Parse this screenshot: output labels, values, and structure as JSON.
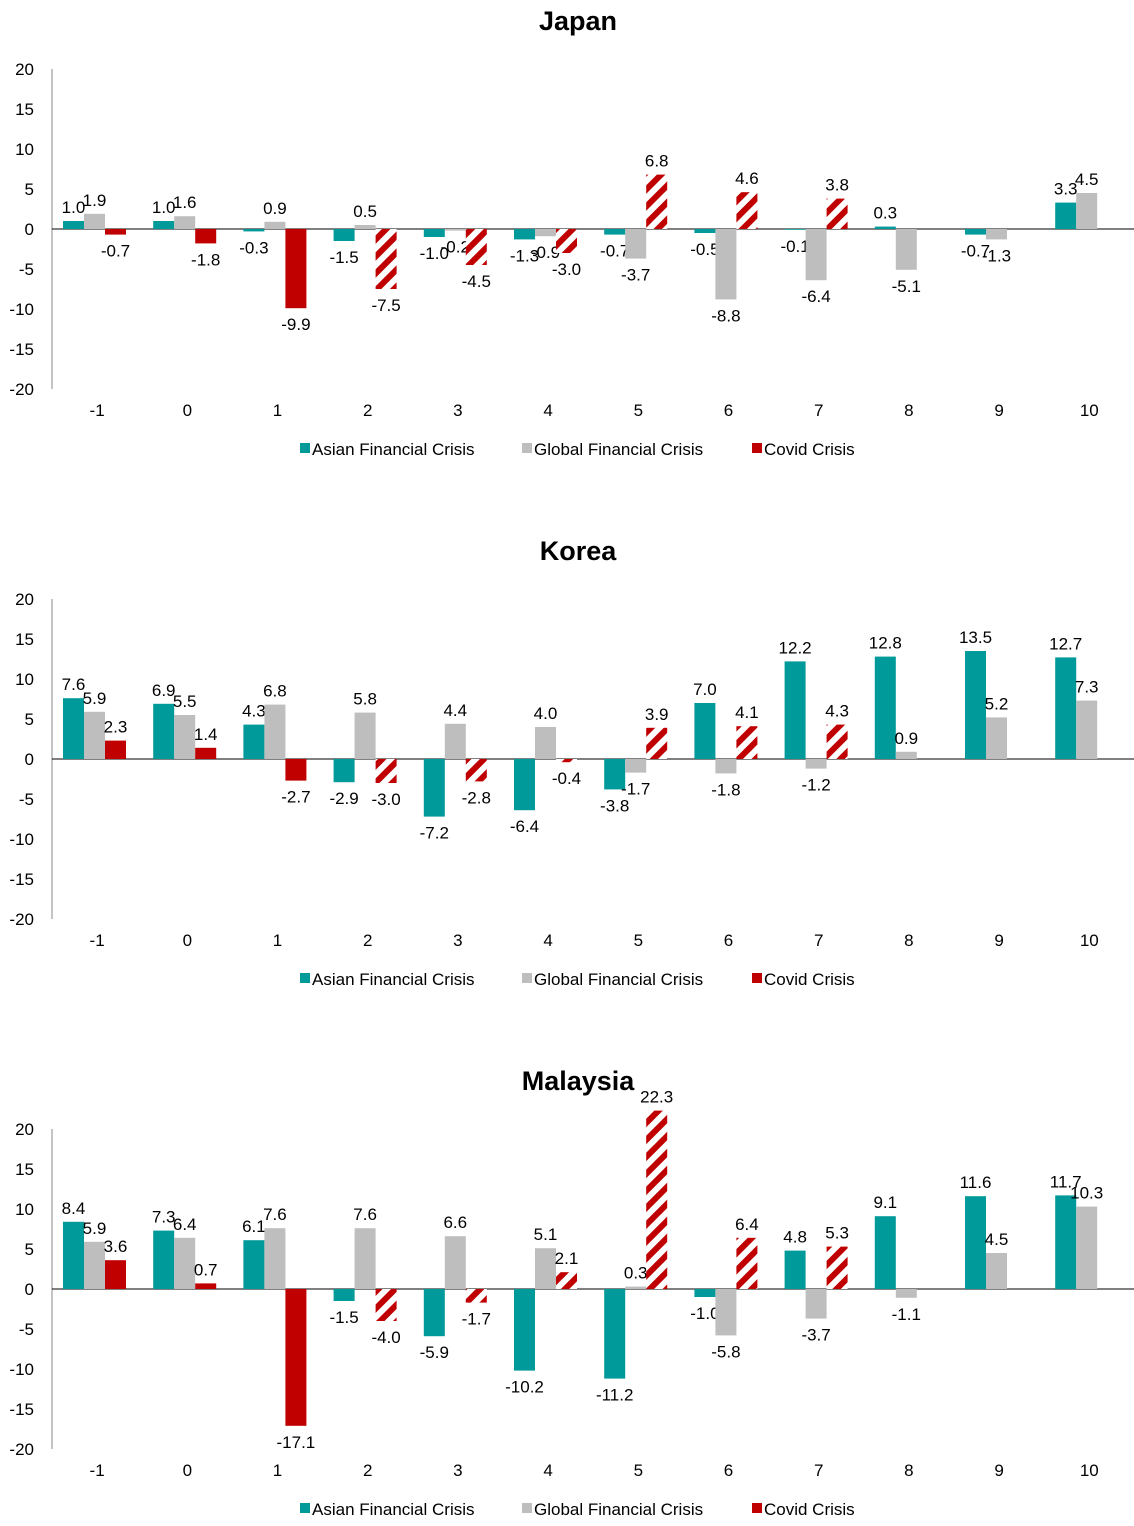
{
  "colors": {
    "asian": "#009A9A",
    "global": "#BEBEBE",
    "covid": "#C00000",
    "covid_hatch": "striped-red-white"
  },
  "chart_data": [
    {
      "type": "bar",
      "title": "Japan",
      "categories": [
        "-1",
        "0",
        "1",
        "2",
        "3",
        "4",
        "5",
        "6",
        "7",
        "8",
        "9",
        "10"
      ],
      "ylim": [
        -20,
        20
      ],
      "yticks": [
        20,
        15,
        10,
        5,
        0,
        -5,
        -10,
        -15,
        -20
      ],
      "legend": "bottom",
      "grid": false,
      "series": [
        {
          "name": "Asian Financial Crisis",
          "values": [
            1.0,
            1.0,
            -0.3,
            -1.5,
            -1.0,
            -1.3,
            -0.7,
            -0.5,
            -0.1,
            0.3,
            -0.7,
            3.3
          ]
        },
        {
          "name": "Global Financial Crisis",
          "values": [
            1.9,
            1.6,
            0.9,
            0.5,
            -0.2,
            -0.9,
            -3.7,
            -8.8,
            -6.4,
            -5.1,
            -1.3,
            4.5
          ]
        },
        {
          "name": "Covid Crisis",
          "values": [
            -0.7,
            -1.8,
            -9.9,
            -7.5,
            -4.5,
            -3.0,
            6.8,
            4.6,
            3.8,
            null,
            null,
            null
          ],
          "hatched_from_index": 3
        }
      ]
    },
    {
      "type": "bar",
      "title": "Korea",
      "categories": [
        "-1",
        "0",
        "1",
        "2",
        "3",
        "4",
        "5",
        "6",
        "7",
        "8",
        "9",
        "10"
      ],
      "ylim": [
        -20,
        20
      ],
      "yticks": [
        20,
        15,
        10,
        5,
        0,
        -5,
        -10,
        -15,
        -20
      ],
      "legend": "bottom",
      "grid": false,
      "series": [
        {
          "name": "Asian Financial Crisis",
          "values": [
            7.6,
            6.9,
            4.3,
            -2.9,
            -7.2,
            -6.4,
            -3.8,
            7.0,
            12.2,
            12.8,
            13.5,
            12.7
          ]
        },
        {
          "name": "Global Financial Crisis",
          "values": [
            5.9,
            5.5,
            6.8,
            5.8,
            4.4,
            4.0,
            -1.7,
            -1.8,
            -1.2,
            0.9,
            5.2,
            7.3
          ]
        },
        {
          "name": "Covid Crisis",
          "values": [
            2.3,
            1.4,
            -2.7,
            -3.0,
            -2.8,
            -0.4,
            3.9,
            4.1,
            4.3,
            null,
            null,
            null
          ],
          "hatched_from_index": 3
        }
      ]
    },
    {
      "type": "bar",
      "title": "Malaysia",
      "categories": [
        "-1",
        "0",
        "1",
        "2",
        "3",
        "4",
        "5",
        "6",
        "7",
        "8",
        "9",
        "10"
      ],
      "ylim": [
        -20,
        20
      ],
      "yticks": [
        20,
        15,
        10,
        5,
        0,
        -5,
        -10,
        -15,
        -20
      ],
      "legend": "bottom",
      "grid": false,
      "series": [
        {
          "name": "Asian Financial Crisis",
          "values": [
            8.4,
            7.3,
            6.1,
            -1.5,
            -5.9,
            -10.2,
            -11.2,
            -1.0,
            4.8,
            9.1,
            11.6,
            11.7
          ]
        },
        {
          "name": "Global Financial Crisis",
          "values": [
            5.9,
            6.4,
            7.6,
            7.6,
            6.6,
            5.1,
            0.3,
            -5.8,
            -3.7,
            -1.1,
            4.5,
            10.3
          ]
        },
        {
          "name": "Covid Crisis",
          "values": [
            3.6,
            0.7,
            -17.1,
            -4.0,
            -1.7,
            2.1,
            22.3,
            6.4,
            5.3,
            null,
            null,
            null
          ],
          "hatched_from_index": 3
        }
      ]
    }
  ]
}
